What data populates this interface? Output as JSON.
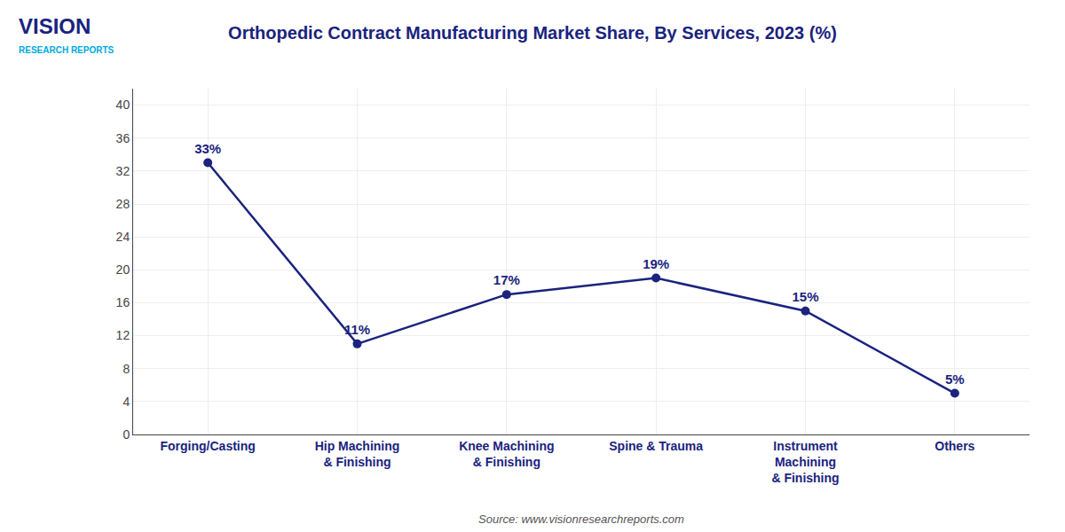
{
  "chart_data": {
    "type": "line",
    "title": "Orthopedic Contract Manufacturing Market Share, By Services, 2023 (%)",
    "categories": [
      "Forging/Casting",
      "Hip Machining\n& Finishing",
      "Knee Machining\n& Finishing",
      "Spine & Trauma",
      "Instrument\nMachining\n& Finishing",
      "Others"
    ],
    "values": [
      33,
      11,
      17,
      19,
      15,
      5
    ],
    "value_labels": [
      "33%",
      "11%",
      "17%",
      "19%",
      "15%",
      "5%"
    ],
    "data_labels": true,
    "color": "#1a237e",
    "marker": "circle",
    "line_style": "solid",
    "ylim": [
      0,
      42
    ],
    "yticks": [
      0,
      4,
      8,
      12,
      16,
      20,
      24,
      28,
      32,
      36,
      40
    ],
    "grid": true,
    "annotations": [
      "Source: www.visionresearchreports.com",
      "VISION",
      "RESEARCH REPORTS"
    ]
  }
}
